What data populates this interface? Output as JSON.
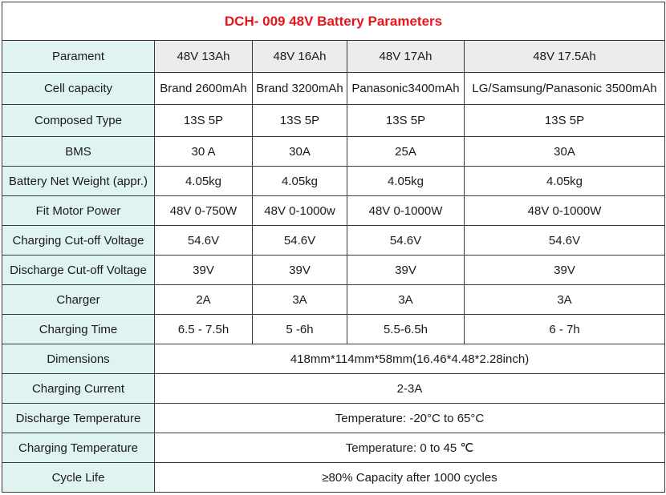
{
  "title": "DCH- 009 48V Battery Parameters",
  "header": {
    "label": "Parament",
    "models": [
      "48V 13Ah",
      "48V 16Ah",
      "48V 17Ah",
      "48V 17.5Ah"
    ]
  },
  "rows": [
    {
      "label": "Cell capacity",
      "values": [
        "Brand 2600mAh",
        "Brand 3200mAh",
        "Panasonic3400mAh",
        "LG/Samsung/Panasonic 3500mAh"
      ]
    },
    {
      "label": "Composed Type",
      "values": [
        "13S 5P",
        "13S 5P",
        "13S 5P",
        "13S 5P"
      ]
    },
    {
      "label": "BMS",
      "values": [
        "30 A",
        "30A",
        "25A",
        "30A"
      ]
    },
    {
      "label": "Battery Net Weight (appr.)",
      "values": [
        "4.05kg",
        "4.05kg",
        "4.05kg",
        "4.05kg"
      ]
    },
    {
      "label": "Fit Motor Power",
      "values": [
        "48V 0-750W",
        "48V 0-1000w",
        "48V 0-1000W",
        "48V 0-1000W"
      ]
    },
    {
      "label": "Charging Cut-off Voltage",
      "values": [
        "54.6V",
        "54.6V",
        "54.6V",
        "54.6V"
      ]
    },
    {
      "label": "Discharge Cut-off Voltage",
      "values": [
        "39V",
        "39V",
        "39V",
        "39V"
      ]
    },
    {
      "label": "Charger",
      "values": [
        "2A",
        "3A",
        "3A",
        "3A"
      ]
    },
    {
      "label": "Charging Time",
      "values": [
        "6.5 - 7.5h",
        "5 -6h",
        "5.5-6.5h",
        "6 - 7h"
      ]
    }
  ],
  "spanned_rows": [
    {
      "label": "Dimensions",
      "value": "418mm*114mm*58mm(16.46*4.48*2.28inch)"
    },
    {
      "label": "Charging Current",
      "value": "2-3A"
    },
    {
      "label": "Discharge Temperature",
      "value": "Temperature: -20°C to 65°C"
    },
    {
      "label": "Charging Temperature",
      "value": "Temperature: 0 to 45 ℃"
    },
    {
      "label": "Cycle Life",
      "value": "≥80% Capacity after 1000 cycles"
    }
  ],
  "colors": {
    "title": "#e8141c",
    "label_bg": "#dff3f1",
    "header_bg": "#ececec",
    "border": "#3a3a3a"
  }
}
